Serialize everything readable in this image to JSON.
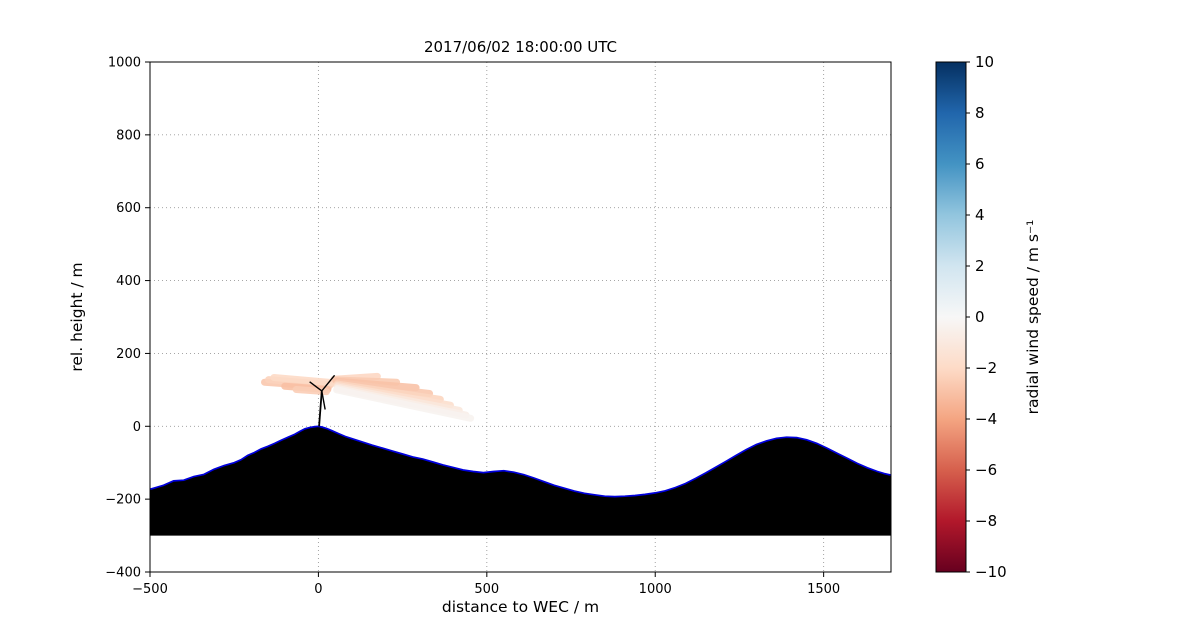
{
  "chart_data": {
    "type": "scatter",
    "title": "2017/06/02 18:00:00 UTC",
    "xlabel": "distance to WEC / m",
    "ylabel": "rel. height / m",
    "xlim": [
      -500,
      1700
    ],
    "ylim": [
      -400,
      1000
    ],
    "xticks": [
      -500,
      0,
      500,
      1000,
      1500
    ],
    "yticks": [
      -400,
      -200,
      0,
      200,
      400,
      600,
      800,
      1000
    ],
    "grid": true,
    "grid_style": "dotted",
    "colorbar": {
      "label": "radial wind speed / m s⁻¹",
      "min": -10,
      "max": 10,
      "ticks": [
        10,
        8,
        6,
        4,
        2,
        0,
        -2,
        -4,
        -6,
        -8,
        -10
      ],
      "colormap": "RdBu",
      "stops": [
        [
          0.0,
          "#67001f"
        ],
        [
          0.1,
          "#b2182b"
        ],
        [
          0.2,
          "#d6604d"
        ],
        [
          0.3,
          "#f4a582"
        ],
        [
          0.4,
          "#fddbc7"
        ],
        [
          0.5,
          "#f7f7f7"
        ],
        [
          0.6,
          "#d1e5f0"
        ],
        [
          0.7,
          "#92c5de"
        ],
        [
          0.8,
          "#4393c3"
        ],
        [
          0.9,
          "#2166ac"
        ],
        [
          1.0,
          "#053061"
        ]
      ]
    },
    "terrain": {
      "fill": "#000000",
      "line_color": "#0000dd",
      "base": -300,
      "points": [
        [
          -500,
          -173
        ],
        [
          -460,
          -162
        ],
        [
          -430,
          -150
        ],
        [
          -400,
          -148
        ],
        [
          -370,
          -138
        ],
        [
          -340,
          -132
        ],
        [
          -310,
          -118
        ],
        [
          -280,
          -108
        ],
        [
          -250,
          -100
        ],
        [
          -230,
          -92
        ],
        [
          -210,
          -80
        ],
        [
          -190,
          -72
        ],
        [
          -170,
          -62
        ],
        [
          -150,
          -55
        ],
        [
          -130,
          -47
        ],
        [
          -110,
          -38
        ],
        [
          -90,
          -30
        ],
        [
          -70,
          -22
        ],
        [
          -55,
          -14
        ],
        [
          -40,
          -7
        ],
        [
          -25,
          -3
        ],
        [
          -10,
          -1
        ],
        [
          0,
          0
        ],
        [
          10,
          -2
        ],
        [
          25,
          -6
        ],
        [
          40,
          -12
        ],
        [
          60,
          -20
        ],
        [
          80,
          -28
        ],
        [
          100,
          -34
        ],
        [
          130,
          -43
        ],
        [
          160,
          -52
        ],
        [
          190,
          -60
        ],
        [
          220,
          -68
        ],
        [
          250,
          -76
        ],
        [
          280,
          -84
        ],
        [
          310,
          -90
        ],
        [
          340,
          -98
        ],
        [
          370,
          -106
        ],
        [
          400,
          -113
        ],
        [
          430,
          -120
        ],
        [
          460,
          -124
        ],
        [
          490,
          -127
        ],
        [
          520,
          -124
        ],
        [
          550,
          -122
        ],
        [
          580,
          -126
        ],
        [
          610,
          -133
        ],
        [
          640,
          -142
        ],
        [
          670,
          -152
        ],
        [
          700,
          -162
        ],
        [
          730,
          -170
        ],
        [
          760,
          -178
        ],
        [
          790,
          -184
        ],
        [
          820,
          -188
        ],
        [
          850,
          -192
        ],
        [
          880,
          -193
        ],
        [
          910,
          -192
        ],
        [
          940,
          -190
        ],
        [
          970,
          -187
        ],
        [
          1000,
          -183
        ],
        [
          1030,
          -177
        ],
        [
          1060,
          -168
        ],
        [
          1090,
          -157
        ],
        [
          1120,
          -143
        ],
        [
          1150,
          -128
        ],
        [
          1180,
          -112
        ],
        [
          1210,
          -96
        ],
        [
          1240,
          -80
        ],
        [
          1270,
          -64
        ],
        [
          1300,
          -50
        ],
        [
          1330,
          -40
        ],
        [
          1360,
          -33
        ],
        [
          1390,
          -30
        ],
        [
          1420,
          -31
        ],
        [
          1450,
          -37
        ],
        [
          1480,
          -47
        ],
        [
          1510,
          -60
        ],
        [
          1540,
          -74
        ],
        [
          1570,
          -88
        ],
        [
          1600,
          -102
        ],
        [
          1630,
          -114
        ],
        [
          1660,
          -124
        ],
        [
          1680,
          -130
        ],
        [
          1700,
          -134
        ]
      ]
    },
    "turbine": {
      "tower": [
        [
          2,
          0
        ],
        [
          10,
          97
        ]
      ],
      "hub": [
        10,
        97
      ],
      "blade_tips": [
        [
          48,
          140
        ],
        [
          -26,
          122
        ],
        [
          20,
          46
        ]
      ]
    },
    "lidar_beams": [
      {
        "x1": 30,
        "z1": 108,
        "x2": -160,
        "z2": 121,
        "v": -2.7
      },
      {
        "x1": 36,
        "z1": 114,
        "x2": -148,
        "z2": 128,
        "v": -2.3
      },
      {
        "x1": 42,
        "z1": 120,
        "x2": -132,
        "z2": 134,
        "v": -2.0
      },
      {
        "x1": 28,
        "z1": 101,
        "x2": -100,
        "z2": 110,
        "v": -3.0
      },
      {
        "x1": 24,
        "z1": 95,
        "x2": -66,
        "z2": 101,
        "v": -2.5
      },
      {
        "x1": 46,
        "z1": 129,
        "x2": 175,
        "z2": 137,
        "v": -2.1
      },
      {
        "x1": 50,
        "z1": 127,
        "x2": 232,
        "z2": 121,
        "v": -2.6
      },
      {
        "x1": 54,
        "z1": 124,
        "x2": 290,
        "z2": 106,
        "v": -2.9
      },
      {
        "x1": 56,
        "z1": 120,
        "x2": 330,
        "z2": 90,
        "v": -2.7
      },
      {
        "x1": 56,
        "z1": 116,
        "x2": 362,
        "z2": 74,
        "v": -2.2
      },
      {
        "x1": 56,
        "z1": 112,
        "x2": 392,
        "z2": 58,
        "v": -1.7
      },
      {
        "x1": 56,
        "z1": 108,
        "x2": 418,
        "z2": 44,
        "v": -1.1
      },
      {
        "x1": 56,
        "z1": 104,
        "x2": 438,
        "z2": 31,
        "v": -0.6
      },
      {
        "x1": 54,
        "z1": 100,
        "x2": 452,
        "z2": 22,
        "v": -0.3
      }
    ]
  }
}
